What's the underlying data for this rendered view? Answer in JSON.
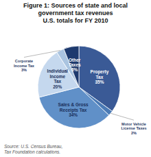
{
  "chart_data": {
    "type": "pie",
    "title": "Figure 1: Sources of state and local\ngovernment tax revenues\nU.S. totals for FY 2010",
    "categories": [
      "Property\nTax\n35%",
      "Motor Vehicle\nLicense Taxes\n2%",
      "Sales & Gross\nReceipts Tax\n34%",
      "Individual\nIncome\nTax\n20%",
      "Corporate\nIncome Tax\n3%",
      "Other\nTaxes\n6%"
    ],
    "values": [
      35,
      2,
      34,
      20,
      3,
      6
    ],
    "colors": [
      "#3a5a96",
      "#4a7ab5",
      "#6090c8",
      "#c5d8ee",
      "#aac4e0",
      "#1e3a6e"
    ],
    "annotations": [
      "Source: U.S. Census Bureau,\nTax Foundation calculations."
    ]
  }
}
